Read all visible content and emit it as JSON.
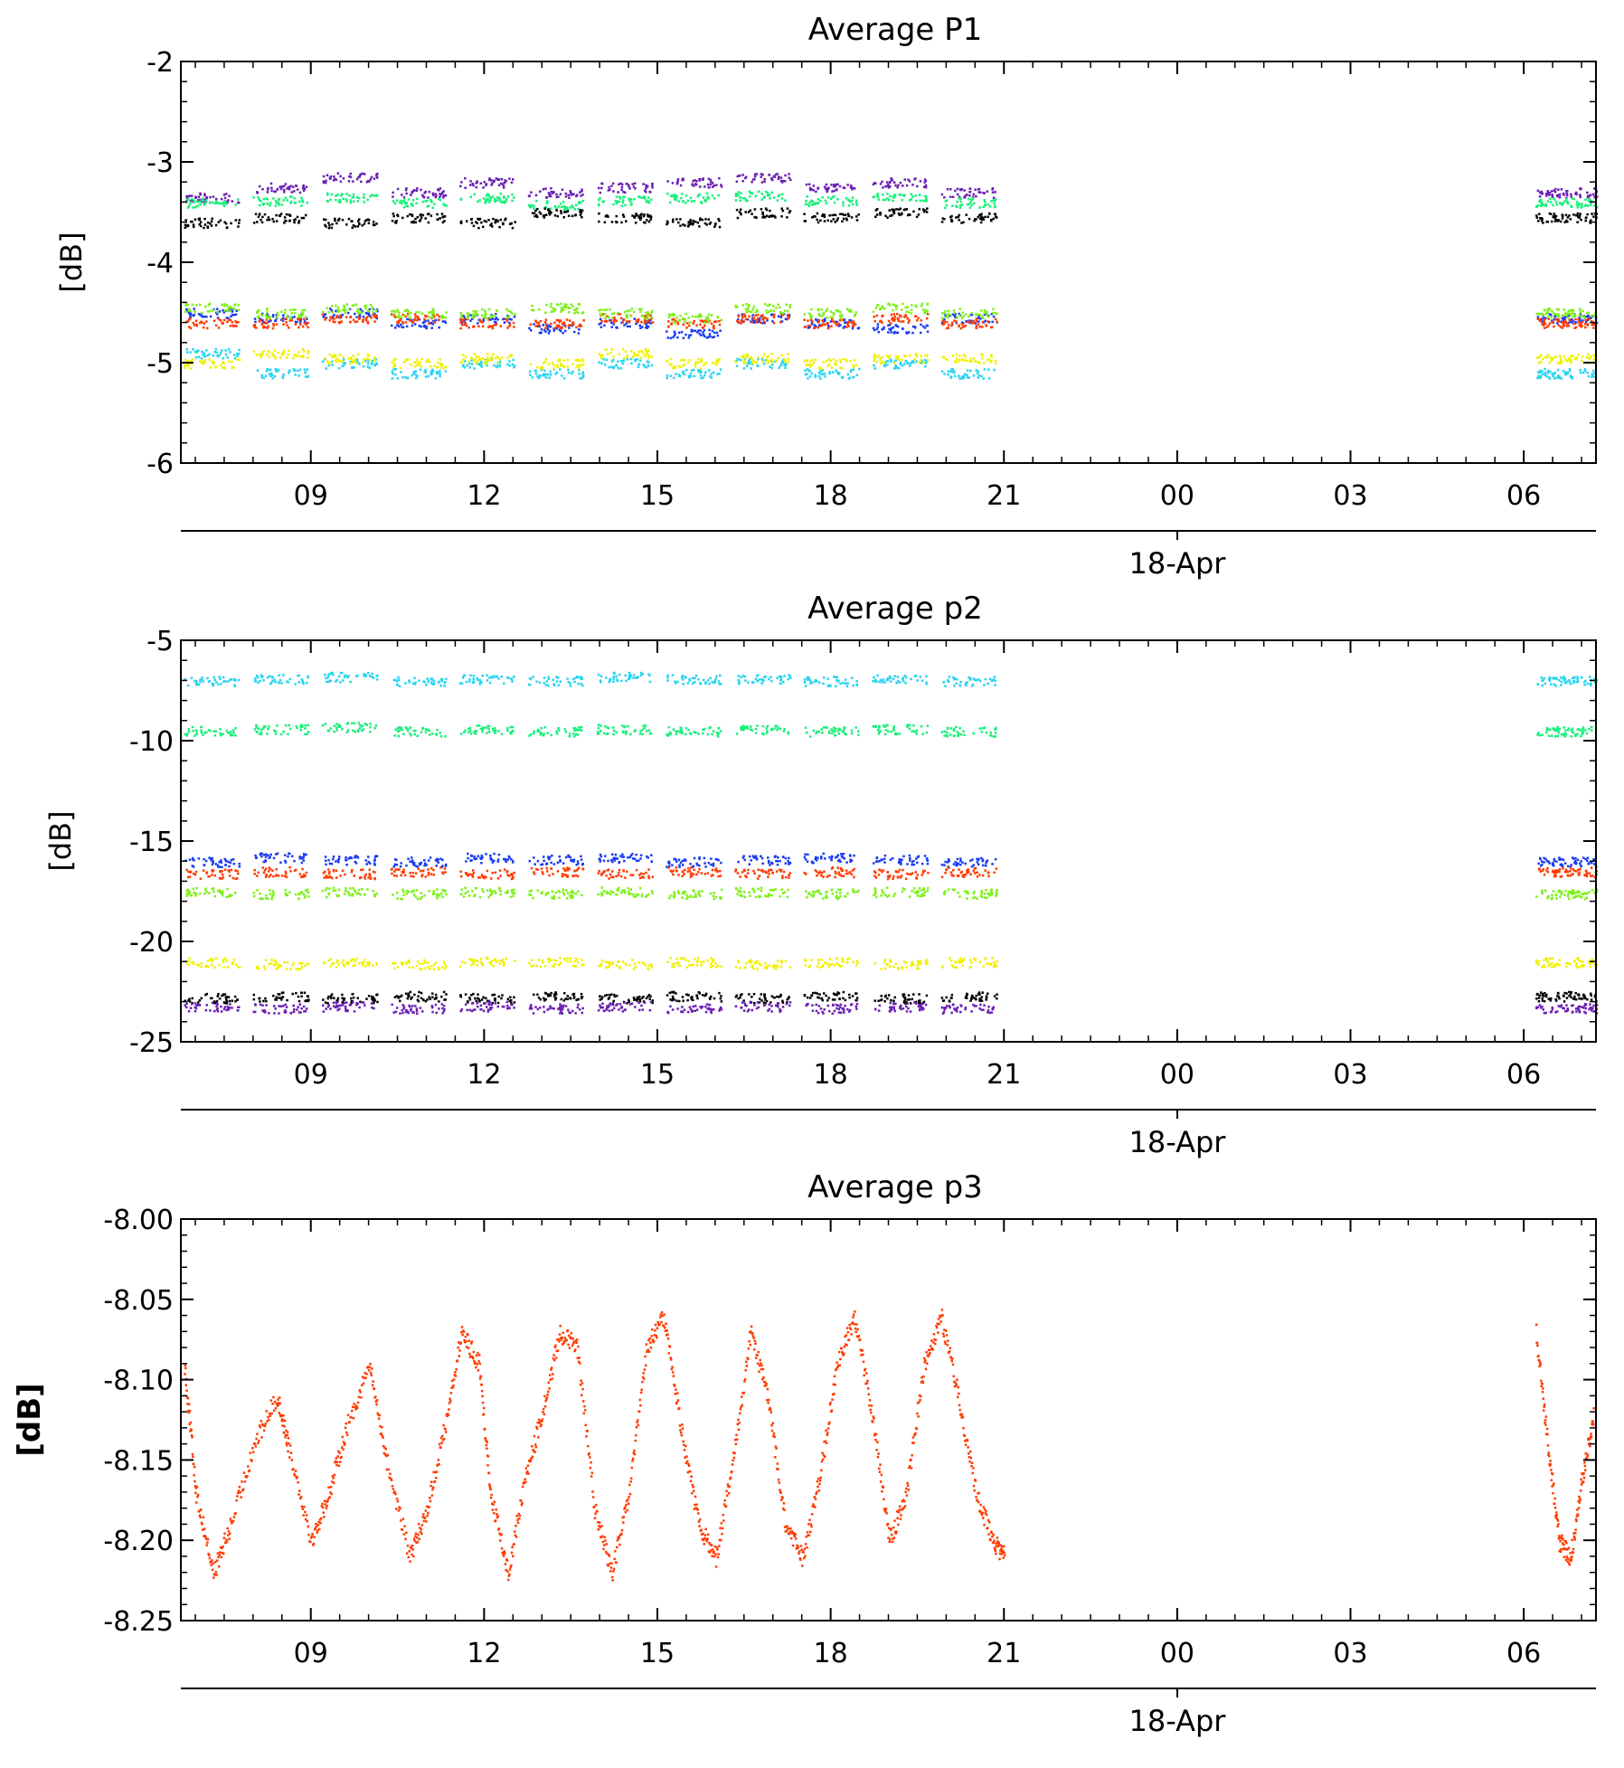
{
  "chart_data": [
    {
      "type": "scatter",
      "title": "Average P1",
      "ylabel": "[dB]",
      "ylim": [
        -6,
        -2
      ],
      "yticks": [
        "-2",
        "-3",
        "-4",
        "-5",
        "-6"
      ],
      "xaxis": {
        "unit": "hours",
        "range": [
          6.75,
          31.25
        ],
        "ticks": [
          "09",
          "12",
          "15",
          "18",
          "21",
          "00",
          "03",
          "06"
        ],
        "date_label": "18-Apr",
        "data_gap": [
          21.1,
          30.2
        ]
      },
      "series": [
        {
          "color": "#6a1fb3",
          "values": [
            -3.35,
            -3.25,
            -3.15,
            -3.3,
            -3.2,
            -3.3,
            -3.25,
            -3.2,
            -3.15,
            -3.25,
            -3.2,
            -3.3
          ]
        },
        {
          "color": "#18f07a",
          "values": [
            -3.4,
            -3.38,
            -3.35,
            -3.4,
            -3.35,
            -3.42,
            -3.38,
            -3.35,
            -3.33,
            -3.38,
            -3.35,
            -3.4
          ]
        },
        {
          "color": "#000000",
          "values": [
            -3.6,
            -3.55,
            -3.6,
            -3.55,
            -3.6,
            -3.5,
            -3.55,
            -3.6,
            -3.5,
            -3.55,
            -3.5,
            -3.55
          ]
        },
        {
          "color": "#1b3cf0",
          "values": [
            -4.5,
            -4.55,
            -4.5,
            -4.6,
            -4.55,
            -4.65,
            -4.6,
            -4.7,
            -4.55,
            -4.6,
            -4.65,
            -4.55
          ]
        },
        {
          "color": "#ff3c00",
          "values": [
            -4.6,
            -4.6,
            -4.55,
            -4.55,
            -4.6,
            -4.6,
            -4.55,
            -4.6,
            -4.55,
            -4.6,
            -4.55,
            -4.6
          ]
        },
        {
          "color": "#7ef01a",
          "values": [
            -4.45,
            -4.5,
            -4.45,
            -4.5,
            -4.5,
            -4.45,
            -4.5,
            -4.55,
            -4.45,
            -4.5,
            -4.45,
            -4.5
          ]
        },
        {
          "color": "#28d4f0",
          "values": [
            -4.9,
            -5.1,
            -5.0,
            -5.1,
            -5.0,
            -5.1,
            -5.0,
            -5.1,
            -5.0,
            -5.1,
            -5.0,
            -5.1
          ]
        },
        {
          "color": "#f0f000",
          "values": [
            -5.0,
            -4.9,
            -4.95,
            -5.0,
            -4.95,
            -5.0,
            -4.9,
            -5.0,
            -4.95,
            -5.0,
            -4.95,
            -4.95
          ]
        }
      ]
    },
    {
      "type": "scatter",
      "title": "Average p2",
      "ylabel": "[dB]",
      "ylim": [
        -25,
        -5
      ],
      "yticks": [
        "-5",
        "-10",
        "-15",
        "-20",
        "-25"
      ],
      "xaxis": {
        "unit": "hours",
        "range": [
          6.75,
          31.25
        ],
        "ticks": [
          "09",
          "12",
          "15",
          "18",
          "21",
          "00",
          "03",
          "06"
        ],
        "date_label": "18-Apr",
        "data_gap": [
          21.1,
          30.2
        ]
      },
      "series": [
        {
          "color": "#28d4f0",
          "values": [
            -7.0,
            -6.9,
            -6.8,
            -7.0,
            -6.9,
            -7.0,
            -6.8,
            -6.9,
            -6.9,
            -7.0,
            -6.9,
            -7.0
          ]
        },
        {
          "color": "#18f07a",
          "values": [
            -9.5,
            -9.4,
            -9.3,
            -9.5,
            -9.4,
            -9.5,
            -9.4,
            -9.5,
            -9.4,
            -9.5,
            -9.4,
            -9.5
          ]
        },
        {
          "color": "#1b3cf0",
          "values": [
            -16.0,
            -15.8,
            -15.9,
            -16.0,
            -15.8,
            -15.9,
            -15.8,
            -16.0,
            -15.9,
            -15.8,
            -15.9,
            -16.0
          ]
        },
        {
          "color": "#ff3c00",
          "values": [
            -16.6,
            -16.5,
            -16.6,
            -16.5,
            -16.6,
            -16.5,
            -16.6,
            -16.5,
            -16.6,
            -16.5,
            -16.6,
            -16.5
          ]
        },
        {
          "color": "#7ef01a",
          "values": [
            -17.5,
            -17.6,
            -17.5,
            -17.6,
            -17.5,
            -17.6,
            -17.5,
            -17.6,
            -17.5,
            -17.6,
            -17.5,
            -17.6
          ]
        },
        {
          "color": "#f0f000",
          "values": [
            -21.0,
            -21.1,
            -21.0,
            -21.1,
            -21.0,
            -21.0,
            -21.1,
            -21.0,
            -21.1,
            -21.0,
            -21.1,
            -21.0
          ]
        },
        {
          "color": "#000000",
          "values": [
            -22.8,
            -22.7,
            -22.8,
            -22.7,
            -22.8,
            -22.7,
            -22.8,
            -22.7,
            -22.8,
            -22.7,
            -22.8,
            -22.7
          ]
        },
        {
          "color": "#6a1fb3",
          "values": [
            -23.2,
            -23.3,
            -23.2,
            -23.3,
            -23.2,
            -23.3,
            -23.2,
            -23.3,
            -23.2,
            -23.3,
            -23.2,
            -23.3
          ]
        }
      ]
    },
    {
      "type": "scatter",
      "title": "Average p3",
      "ylabel": "[dB]",
      "ylim": [
        -8.25,
        -8.0
      ],
      "yticks": [
        "-8.00",
        "-8.05",
        "-8.10",
        "-8.15",
        "-8.20",
        "-8.25"
      ],
      "xaxis": {
        "unit": "hours",
        "range": [
          6.75,
          31.25
        ],
        "ticks": [
          "09",
          "12",
          "15",
          "18",
          "21",
          "00",
          "03",
          "06"
        ],
        "date_label": "18-Apr",
        "data_gap": [
          21.1,
          30.2
        ]
      },
      "series": [
        {
          "color": "#ff3c00",
          "x": [
            6.8,
            7.0,
            7.3,
            7.6,
            8.0,
            8.4,
            8.6,
            9.0,
            9.3,
            9.6,
            10.0,
            10.3,
            10.7,
            11.0,
            11.3,
            11.6,
            11.9,
            12.1,
            12.4,
            12.7,
            13.0,
            13.3,
            13.6,
            13.9,
            14.2,
            14.5,
            14.8,
            15.1,
            15.4,
            15.7,
            16.0,
            16.3,
            16.6,
            16.9,
            17.2,
            17.5,
            17.8,
            18.1,
            18.4,
            18.7,
            19.0,
            19.3,
            19.6,
            19.9,
            20.2,
            20.5,
            20.8,
            21.0,
            30.2,
            30.4,
            30.6,
            30.8,
            31.0,
            31.2
          ],
          "values": [
            -8.09,
            -8.17,
            -8.22,
            -8.19,
            -8.14,
            -8.11,
            -8.14,
            -8.2,
            -8.17,
            -8.13,
            -8.09,
            -8.15,
            -8.21,
            -8.18,
            -8.13,
            -8.07,
            -8.09,
            -8.17,
            -8.22,
            -8.16,
            -8.12,
            -8.07,
            -8.08,
            -8.18,
            -8.22,
            -8.17,
            -8.08,
            -8.06,
            -8.13,
            -8.19,
            -8.21,
            -8.15,
            -8.07,
            -8.11,
            -8.19,
            -8.21,
            -8.16,
            -8.09,
            -8.06,
            -8.12,
            -8.2,
            -8.17,
            -8.09,
            -8.06,
            -8.11,
            -8.17,
            -8.2,
            -8.21,
            -8.07,
            -8.14,
            -8.2,
            -8.21,
            -8.16,
            -8.12
          ]
        }
      ]
    }
  ]
}
